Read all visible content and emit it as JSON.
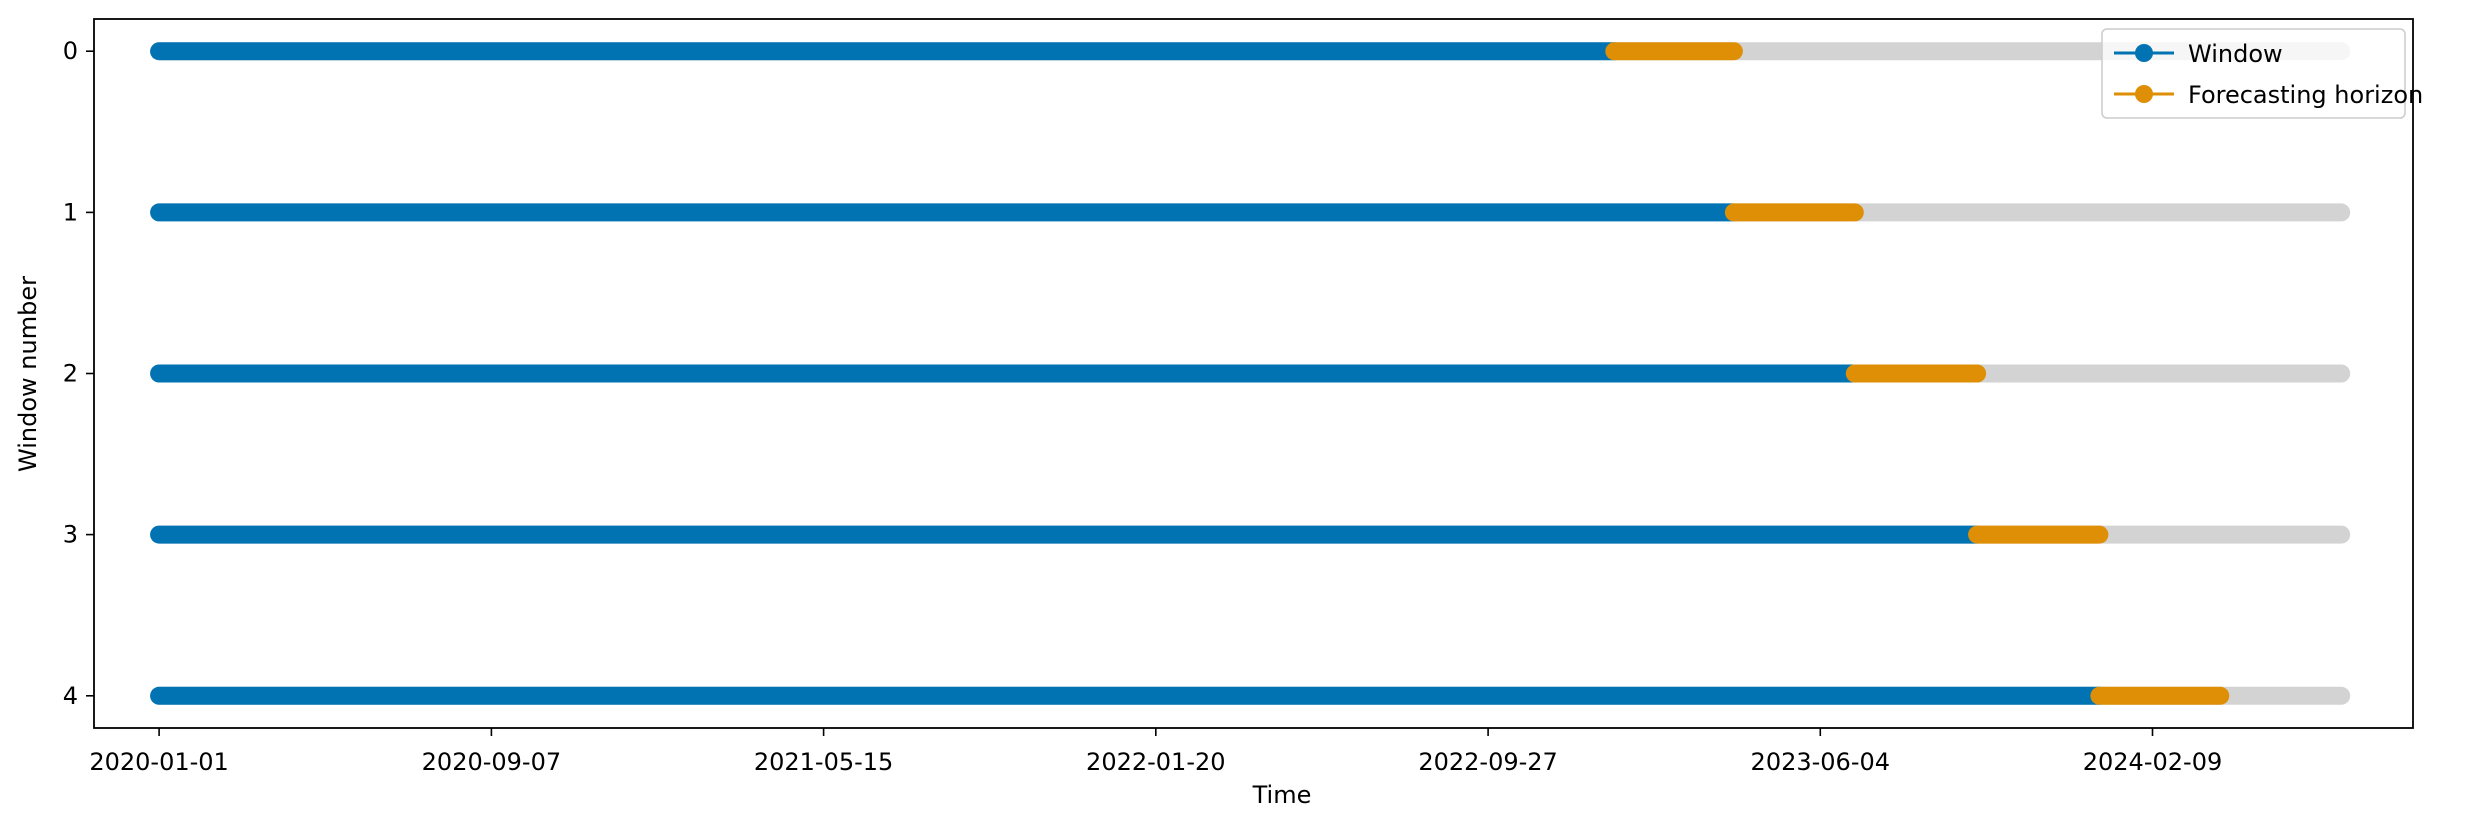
{
  "chart_data": {
    "type": "line",
    "xlabel": "Time",
    "ylabel": "Window number",
    "x_ticks": [
      "2020-01-01",
      "2020-09-07",
      "2021-05-15",
      "2022-01-20",
      "2022-09-27",
      "2023-06-04",
      "2024-02-09"
    ],
    "y_ticks": [
      "0",
      "1",
      "2",
      "3",
      "4"
    ],
    "xlim": [
      "2019-11-13",
      "2024-08-23"
    ],
    "ylim": [
      4.2,
      -0.2
    ],
    "y_inverted": true,
    "grid": false,
    "legend_position": "top-right",
    "series": [
      {
        "name": "Window",
        "color": "#0173b2"
      },
      {
        "name": "Forecasting horizon",
        "color": "#de8f05"
      }
    ],
    "rest_color": "#d3d3d3",
    "timeline": {
      "start": "2020-01-01",
      "end": "2024-06-30"
    },
    "windows": [
      {
        "window": 0,
        "train_start": "2020-01-01",
        "train_end": "2022-12-31",
        "horizon_end": "2023-03-31"
      },
      {
        "window": 1,
        "train_start": "2020-01-01",
        "train_end": "2023-03-31",
        "horizon_end": "2023-06-30"
      },
      {
        "window": 2,
        "train_start": "2020-01-01",
        "train_end": "2023-06-30",
        "horizon_end": "2023-09-30"
      },
      {
        "window": 3,
        "train_start": "2020-01-01",
        "train_end": "2023-09-30",
        "horizon_end": "2023-12-31"
      },
      {
        "window": 4,
        "train_start": "2020-01-01",
        "train_end": "2023-12-31",
        "horizon_end": "2024-03-31"
      }
    ]
  }
}
